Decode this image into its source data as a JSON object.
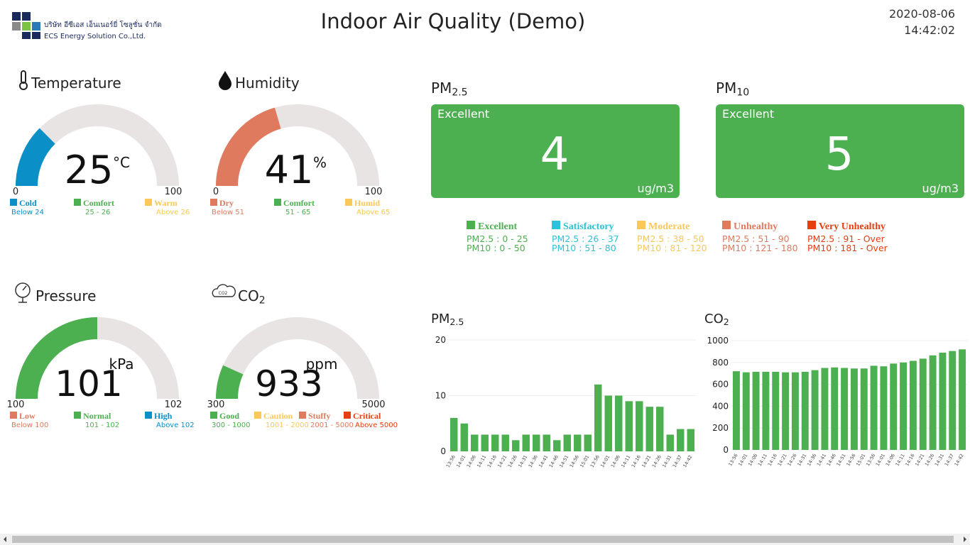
{
  "header": {
    "company_thai": "บริษัท อีซีเอส เอ็นเนอร์ยี่ โซลูชั่น จำกัด",
    "company_en": "ECS Energy Solution Co.,Ltd.",
    "title": "Indoor Air Quality (Demo)",
    "date": "2020-08-06",
    "time": "14:42:02"
  },
  "gauges": [
    {
      "title": {
        "main": "Temperature"
      },
      "value": 25,
      "unit": "°C",
      "min": 0,
      "max": 100,
      "color": "#0a8fc7",
      "legend": [
        {
          "name": "Cold",
          "range": "Below 24",
          "color": "#0a8fc7"
        },
        {
          "name": "Comfort",
          "range": "25 - 26",
          "color": "#4caf50"
        },
        {
          "name": "Warm",
          "range": "Above 26",
          "color": "#f9c859"
        }
      ]
    },
    {
      "title": {
        "main": "Humidity"
      },
      "value": 41,
      "unit": "%",
      "min": 0,
      "max": 100,
      "color": "#e07a5f",
      "legend": [
        {
          "name": "Dry",
          "range": "Below 51",
          "color": "#e07a5f"
        },
        {
          "name": "Comfort",
          "range": "51 - 65",
          "color": "#4caf50"
        },
        {
          "name": "Humid",
          "range": "Above 65",
          "color": "#f9c859"
        }
      ]
    },
    {
      "title": {
        "main": "Pressure"
      },
      "value": 101,
      "unit": "kPa",
      "min": 100,
      "max": 102,
      "color": "#4caf50",
      "legend": [
        {
          "name": "Low",
          "range": "Below 100",
          "color": "#e07a5f"
        },
        {
          "name": "Normal",
          "range": "101 - 102",
          "color": "#4caf50"
        },
        {
          "name": "High",
          "range": "Above 102",
          "color": "#0a8fc7"
        }
      ]
    },
    {
      "title": {
        "main": "CO",
        "sub": "2"
      },
      "value": 933,
      "unit": "ppm",
      "min": 300,
      "max": 5000,
      "color": "#4caf50",
      "legend": [
        {
          "name": "Good",
          "range": "300 - 1000",
          "color": "#4caf50"
        },
        {
          "name": "Caution",
          "range": "1001 - 2000",
          "color": "#f9c859"
        },
        {
          "name": "Stuffy",
          "range": "2001 - 5000",
          "color": "#e07a5f"
        },
        {
          "name": "Critical",
          "range": "Above 5000",
          "color": "#e63e11"
        }
      ]
    }
  ],
  "pm_cards": [
    {
      "label": {
        "main": "PM",
        "sub": "2.5"
      },
      "status": "Excellent",
      "value": 4,
      "unit": "ug/m3",
      "color": "#4caf50"
    },
    {
      "label": {
        "main": "PM",
        "sub": "10"
      },
      "status": "Excellent",
      "value": 5,
      "unit": "ug/m3",
      "color": "#4caf50"
    }
  ],
  "pm_legend": [
    {
      "name": "Excellent",
      "color": "#4caf50",
      "pm25": "PM2.5 : 0 - 25",
      "pm10": "PM10 : 0 - 50"
    },
    {
      "name": "Satisfactory",
      "color": "#29c4d9",
      "pm25": "PM2.5 : 26 - 37",
      "pm10": "PM10 : 51 - 80"
    },
    {
      "name": "Moderate",
      "color": "#f9c859",
      "pm25": "PM2.5 : 38 - 50",
      "pm10": "PM10 : 81 - 120"
    },
    {
      "name": "Unhealthy",
      "color": "#e07a5f",
      "pm25": "PM2.5 : 51 - 90",
      "pm10": "PM10 : 121 - 180"
    },
    {
      "name": "Very Unhealthy",
      "color": "#e63e11",
      "pm25": "PM2.5 : 91 - Over",
      "pm10": "PM10 : 181 - Over"
    }
  ],
  "chart_data": [
    {
      "type": "bar",
      "title": {
        "main": "PM",
        "sub": "2.5"
      },
      "categories": [
        "13:56",
        "14:01",
        "14:06",
        "14:11",
        "14:16",
        "14:21",
        "14:26",
        "14:31",
        "14:36",
        "14:41",
        "14:46",
        "14:51",
        "14:56",
        "15:01",
        "13:56",
        "14:01",
        "14:06",
        "14:11",
        "14:16",
        "14:21",
        "14:26",
        "14:31",
        "14:37",
        "14:42"
      ],
      "values": [
        6,
        5,
        3,
        3,
        3,
        3,
        2,
        3,
        3,
        3,
        2,
        3,
        3,
        3,
        12,
        10,
        10,
        9,
        9,
        8,
        8,
        3,
        4,
        4
      ],
      "color": "#4caf50",
      "ylim": [
        0,
        20
      ],
      "yticks": [
        0,
        10,
        20
      ],
      "grid": true
    },
    {
      "type": "bar",
      "title": {
        "main": "CO",
        "sub": "2"
      },
      "categories": [
        "13:56",
        "14:01",
        "14:06",
        "14:11",
        "14:16",
        "14:21",
        "14:26",
        "14:31",
        "14:36",
        "14:41",
        "14:46",
        "14:51",
        "14:56",
        "15:01",
        "13:56",
        "14:01",
        "14:06",
        "14:11",
        "14:16",
        "14:21",
        "14:26",
        "14:31",
        "14:37",
        "14:42"
      ],
      "values": [
        720,
        710,
        715,
        715,
        715,
        710,
        710,
        715,
        730,
        750,
        755,
        750,
        745,
        745,
        770,
        765,
        790,
        800,
        815,
        835,
        865,
        890,
        905,
        920
      ],
      "color": "#4caf50",
      "ylim": [
        0,
        1000
      ],
      "yticks": [
        0,
        200,
        400,
        600,
        800,
        1000
      ],
      "grid": true
    }
  ]
}
